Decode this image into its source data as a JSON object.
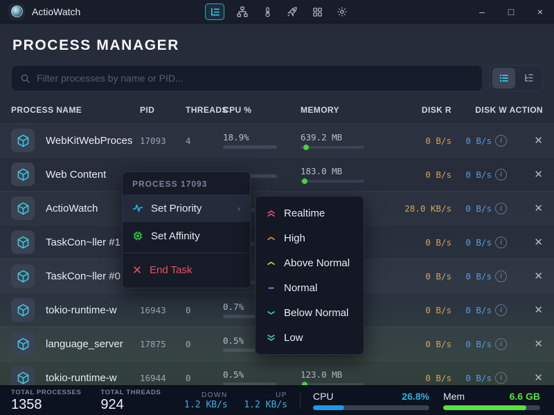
{
  "titlebar": {
    "app_name": "ActioWatch",
    "icons": [
      "process-list",
      "sitemap",
      "thermometer",
      "rocket",
      "grid",
      "gear"
    ],
    "window": {
      "minimize": "–",
      "maximize": "□",
      "close": "×"
    }
  },
  "header": {
    "title": "PROCESS MANAGER"
  },
  "filter": {
    "placeholder": "Filter processes by name or PID..."
  },
  "table": {
    "columns": [
      "PROCESS NAME",
      "PID",
      "THREADS",
      "CPU %",
      "MEMORY",
      "DISK R",
      "DISK W",
      "ACTION"
    ],
    "rows": [
      {
        "name": "WebKitWebProces",
        "pid": "17093",
        "threads": "4",
        "cpu": "18.9%",
        "cpu_bar": 19,
        "mem": "639.2 MB",
        "mem_dot": 4,
        "disk_r": "0 B/s",
        "disk_w": "0 B/s"
      },
      {
        "name": "Web Content",
        "pid": "",
        "threads": "",
        "cpu": "",
        "cpu_bar": 0,
        "mem": "183.0 MB",
        "mem_dot": 2,
        "disk_r": "0 B/s",
        "disk_w": "0 B/s"
      },
      {
        "name": "ActioWatch",
        "pid": "",
        "threads": "",
        "cpu": "",
        "cpu_bar": 0,
        "mem": "",
        "mem_dot": -1,
        "disk_r": "28.0 KB/s",
        "disk_w": "0 B/s"
      },
      {
        "name": "TaskCon~ller #1",
        "pid": "",
        "threads": "",
        "cpu": "",
        "cpu_bar": 0,
        "mem": "",
        "mem_dot": -1,
        "disk_r": "0 B/s",
        "disk_w": "0 B/s"
      },
      {
        "name": "TaskCon~ller #0",
        "pid": "16298",
        "threads": "0",
        "cpu": "1.0%",
        "cpu_bar": 2,
        "mem": "",
        "mem_dot": -1,
        "disk_r": "0 B/s",
        "disk_w": "0 B/s"
      },
      {
        "name": "tokio-runtime-w",
        "pid": "16943",
        "threads": "0",
        "cpu": "0.7%",
        "cpu_bar": 2,
        "mem": "",
        "mem_dot": -1,
        "disk_r": "0 B/s",
        "disk_w": "0 B/s"
      },
      {
        "name": "language_server",
        "pid": "17875",
        "threads": "0",
        "cpu": "0.5%",
        "cpu_bar": 1,
        "mem": "370.9 MB",
        "mem_dot": 3,
        "disk_r": "0 B/s",
        "disk_w": "0 B/s"
      },
      {
        "name": "tokio-runtime-w",
        "pid": "16944",
        "threads": "0",
        "cpu": "0.5%",
        "cpu_bar": 1,
        "mem": "123.0 MB",
        "mem_dot": 2,
        "disk_r": "0 B/s",
        "disk_w": "0 B/s"
      }
    ]
  },
  "context_menu": {
    "header": "PROCESS 17093",
    "items": [
      {
        "label": "Set Priority"
      },
      {
        "label": "Set Affinity"
      },
      {
        "label": "End Task"
      }
    ]
  },
  "priority_submenu": {
    "items": [
      {
        "label": "Realtime",
        "glyph": "double-up",
        "color": "#e14b6d"
      },
      {
        "label": "High",
        "glyph": "up",
        "color": "#d98a4a"
      },
      {
        "label": "Above Normal",
        "glyph": "up",
        "color": "#c9c94f"
      },
      {
        "label": "Normal",
        "glyph": "dash",
        "color": "#5b8fd9"
      },
      {
        "label": "Below Normal",
        "glyph": "down",
        "color": "#3cc9a9"
      },
      {
        "label": "Low",
        "glyph": "double-down",
        "color": "#3cc9a9"
      }
    ]
  },
  "status_bar": {
    "total_processes": {
      "label": "TOTAL PROCESSES",
      "value": "1358"
    },
    "total_threads": {
      "label": "TOTAL THREADS",
      "value": "924"
    },
    "down": {
      "label": "DOWN",
      "value": "1.2 KB/s"
    },
    "up": {
      "label": "UP",
      "value": "1.2 KB/s"
    },
    "cpu": {
      "label": "CPU",
      "value": "26.8%",
      "pct": 26.8
    },
    "mem": {
      "label": "Mem",
      "value": "6.6 GB",
      "pct": 86
    }
  },
  "accents": {
    "cyan": "#29b8e8",
    "green": "#43d63c",
    "orange": "#d2a25e",
    "blue": "#5b9bd8",
    "red": "#e25560"
  }
}
